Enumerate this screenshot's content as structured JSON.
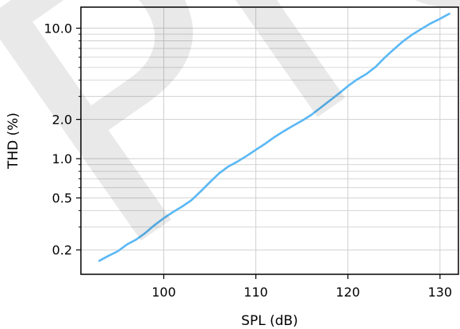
{
  "watermark_text": "Pre",
  "colors": {
    "line": "#5bb8f5",
    "grid": "#d0d0d0",
    "axis": "#000000",
    "watermark": "#cfcfcf"
  },
  "chart_data": {
    "type": "line",
    "title": "",
    "xlabel": "SPL (dB)",
    "ylabel": "THD (%)",
    "xlim": [
      91,
      132
    ],
    "ylim": [
      0.13,
      14.5
    ],
    "yscale": "log",
    "grid": true,
    "legend": "none",
    "xticks": [
      100,
      110,
      120,
      130
    ],
    "xtick_labels": [
      "100",
      "110",
      "120",
      "130"
    ],
    "yticks": [
      0.2,
      0.5,
      1.0,
      2.0,
      10.0
    ],
    "ytick_labels": [
      "0.2",
      "0.5",
      "1.0",
      "2.0",
      "10.0"
    ],
    "yminor_grid": [
      0.3,
      0.4,
      0.6,
      0.7,
      0.8,
      0.9,
      3,
      4,
      5,
      6,
      7,
      8,
      9
    ],
    "series": [
      {
        "name": "",
        "color": "#5bb8f5",
        "x": [
          93,
          94,
          95,
          96,
          97,
          98,
          99,
          100,
          101,
          102,
          103,
          104,
          105,
          106,
          107,
          108,
          109,
          110,
          111,
          112,
          113,
          114,
          115,
          116,
          117,
          118,
          119,
          120,
          121,
          122,
          123,
          124,
          125,
          126,
          127,
          128,
          129,
          130,
          131
        ],
        "y": [
          0.165,
          0.18,
          0.195,
          0.22,
          0.24,
          0.27,
          0.31,
          0.35,
          0.39,
          0.43,
          0.48,
          0.56,
          0.66,
          0.77,
          0.87,
          0.95,
          1.05,
          1.17,
          1.3,
          1.46,
          1.62,
          1.78,
          1.95,
          2.16,
          2.45,
          2.78,
          3.15,
          3.6,
          4.05,
          4.45,
          5.05,
          5.95,
          6.9,
          7.95,
          8.95,
          9.9,
          10.9,
          11.8,
          12.9
        ]
      }
    ]
  }
}
